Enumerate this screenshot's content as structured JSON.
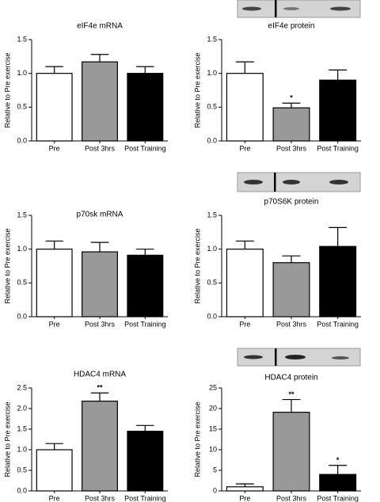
{
  "chart_data": [
    {
      "type": "bar",
      "title": "eIF4e mRNA",
      "y_label": "Relative to Pre exercise",
      "categories": [
        "Pre",
        "Post 3hrs",
        "Post Training"
      ],
      "values": [
        1.0,
        1.17,
        1.0
      ],
      "errors": [
        0.1,
        0.11,
        0.1
      ],
      "colors": [
        "#ffffff",
        "#999999",
        "#000000"
      ],
      "significance": [
        null,
        null,
        null
      ],
      "ylim": [
        0,
        1.5
      ],
      "yticks": [
        {
          "value": 0,
          "label": "0.0"
        },
        0.5,
        {
          "value": 1,
          "label": "1.0"
        },
        1.5
      ]
    },
    {
      "type": "bar",
      "title": "eIF4e protein",
      "y_label": "Relative to Pre exercise",
      "categories": [
        "Pre",
        "Post 3hrs",
        "Post Training"
      ],
      "values": [
        1.0,
        0.49,
        0.9
      ],
      "errors": [
        0.17,
        0.07,
        0.15
      ],
      "colors": [
        "#ffffff",
        "#999999",
        "#000000"
      ],
      "significance": [
        null,
        "*",
        null
      ],
      "ylim": [
        0,
        1.5
      ],
      "yticks": [
        {
          "value": 0,
          "label": "0.0"
        },
        0.5,
        {
          "value": 1,
          "label": "1.0"
        },
        1.5
      ]
    },
    {
      "type": "bar",
      "title": "p70sk mRNA",
      "y_label": "Relative to Pre exercise",
      "categories": [
        "Pre",
        "Post 3hrs",
        "Post Training"
      ],
      "values": [
        1.0,
        0.96,
        0.91
      ],
      "errors": [
        0.12,
        0.14,
        0.09
      ],
      "colors": [
        "#ffffff",
        "#999999",
        "#000000"
      ],
      "significance": [
        null,
        null,
        null
      ],
      "ylim": [
        0,
        1.5
      ],
      "yticks": [
        {
          "value": 0,
          "label": "0.0"
        },
        0.5,
        {
          "value": 1,
          "label": "1.0"
        },
        1.5
      ]
    },
    {
      "type": "bar",
      "title": "p70S6K protein",
      "y_label": "Relative to Pre exercise",
      "categories": [
        "Pre",
        "Post 3hrs",
        "Post Training"
      ],
      "values": [
        1.0,
        0.8,
        1.04
      ],
      "errors": [
        0.12,
        0.1,
        0.28
      ],
      "colors": [
        "#ffffff",
        "#999999",
        "#000000"
      ],
      "significance": [
        null,
        null,
        null
      ],
      "ylim": [
        0,
        1.5
      ],
      "yticks": [
        {
          "value": 0,
          "label": "0.0"
        },
        0.5,
        {
          "value": 1,
          "label": "1.0"
        },
        1.5
      ]
    },
    {
      "type": "bar",
      "title": "HDAC4 mRNA",
      "y_label": "Relative to Pre exercise",
      "categories": [
        "Pre",
        "Post 3hrs",
        "Post Training"
      ],
      "values": [
        1.0,
        2.18,
        1.45
      ],
      "errors": [
        0.15,
        0.2,
        0.14
      ],
      "colors": [
        "#ffffff",
        "#999999",
        "#000000"
      ],
      "significance": [
        null,
        "**",
        null
      ],
      "ylim": [
        0,
        2.5
      ],
      "yticks": [
        {
          "value": 0,
          "label": "0.0"
        },
        0.5,
        {
          "value": 1,
          "label": "1.0"
        },
        1.5,
        {
          "value": 2,
          "label": "2.0"
        },
        2.5
      ]
    },
    {
      "type": "bar",
      "title": "HDAC4 protein",
      "y_label": "Relative to Pre exercise",
      "categories": [
        "Pre",
        "Post 3hrs",
        "Post Training"
      ],
      "values": [
        1.0,
        19.1,
        4.0
      ],
      "errors": [
        0.7,
        3.1,
        2.2
      ],
      "colors": [
        "#ffffff",
        "#999999",
        "#000000"
      ],
      "significance": [
        null,
        "**",
        "*"
      ],
      "ylim": [
        0,
        25
      ],
      "yticks": [
        0,
        5,
        10,
        15,
        20,
        25
      ]
    }
  ]
}
